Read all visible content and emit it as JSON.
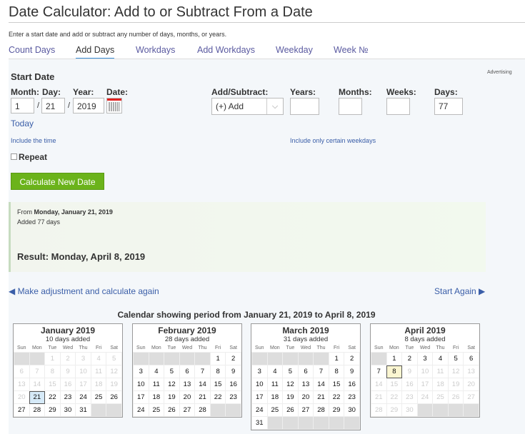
{
  "title": "Date Calculator: Add to or Subtract From a Date",
  "description": "Enter a start date and add or subtract any number of days, months, or years.",
  "tabs": [
    {
      "label": "Count Days"
    },
    {
      "label": "Add Days",
      "active": true
    },
    {
      "label": "Workdays"
    },
    {
      "label": "Add Workdays"
    },
    {
      "label": "Weekday"
    },
    {
      "label": "Week №"
    }
  ],
  "advertising": "Advertising",
  "form": {
    "start_date_heading": "Start Date",
    "month_label": "Month:",
    "day_label": "Day:",
    "year_label": "Year:",
    "date_label": "Date:",
    "month": "1",
    "day": "21",
    "year": "2019",
    "sep": "/",
    "today_link": "Today",
    "add_subtract_label": "Add/Subtract:",
    "add_subtract_value": "(+) Add",
    "years_label": "Years:",
    "months_label": "Months:",
    "weeks_label": "Weeks:",
    "days_label": "Days:",
    "years": "",
    "months": "",
    "weeks": "",
    "days": "77",
    "include_time": "Include the time",
    "include_weekdays": "Include only certain weekdays",
    "repeat_label": "Repeat",
    "calculate_button": "Calculate New Date"
  },
  "result": {
    "from_prefix": "From ",
    "from_date": "Monday, January 21, 2019",
    "added": "Added 77 days",
    "result": "Result: Monday, April 8, 2019"
  },
  "adjust_link": "◀ Make adjustment and calculate again",
  "start_again_link": "Start Again ▶",
  "calendar_heading": "Calendar showing period from January 21, 2019 to April 8, 2019",
  "weekdays": [
    "Sun",
    "Mon",
    "Tue",
    "Wed",
    "Thu",
    "Fri",
    "Sat"
  ],
  "colors": {
    "accent": "#3b8ed8",
    "button": "#6bb31b",
    "link": "#3a5ea8"
  },
  "calendars": [
    {
      "title": "January 2019",
      "subtitle": "10 days added",
      "offset": 2,
      "days": 31,
      "active_from": 21,
      "active_to": 31,
      "marked": 21,
      "marked_style": "blue"
    },
    {
      "title": "February 2019",
      "subtitle": "28 days added",
      "offset": 5,
      "days": 28,
      "active_from": 1,
      "active_to": 28
    },
    {
      "title": "March 2019",
      "subtitle": "31 days added",
      "offset": 5,
      "days": 31,
      "active_from": 1,
      "active_to": 31
    },
    {
      "title": "April 2019",
      "subtitle": "8 days added",
      "offset": 1,
      "days": 30,
      "active_from": 1,
      "active_to": 8,
      "marked": 8,
      "marked_style": "yellow"
    }
  ]
}
